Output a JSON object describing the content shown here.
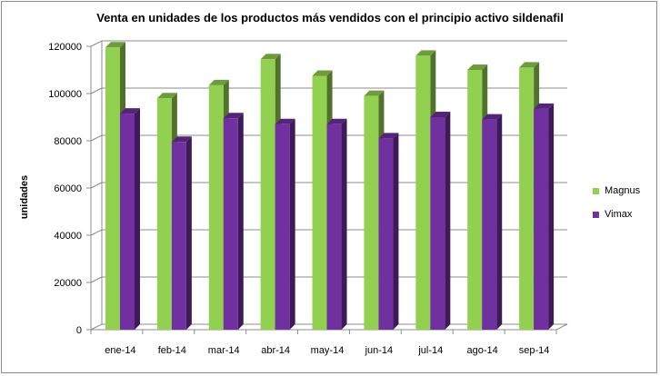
{
  "chart_data": {
    "type": "bar",
    "title": "Venta en unidades de los productos más vendidos con el principio activo sildenafil",
    "xlabel": "",
    "ylabel": "unidades",
    "categories": [
      "ene-14",
      "feb-14",
      "mar-14",
      "abr-14",
      "may-14",
      "jun-14",
      "jul-14",
      "ago-14",
      "sep-14"
    ],
    "ylim": [
      0,
      120000
    ],
    "yticks": [
      0,
      20000,
      40000,
      60000,
      80000,
      100000,
      120000
    ],
    "grid": true,
    "legend_position": "right",
    "series": [
      {
        "name": "Magnus",
        "color": "#92d050",
        "values": [
          119500,
          98000,
          103500,
          114500,
          107500,
          99000,
          116000,
          110000,
          111000
        ]
      },
      {
        "name": "Vimax",
        "color": "#7030a0",
        "values": [
          91500,
          79500,
          89500,
          87000,
          87000,
          81000,
          90000,
          89000,
          93500
        ]
      }
    ]
  }
}
